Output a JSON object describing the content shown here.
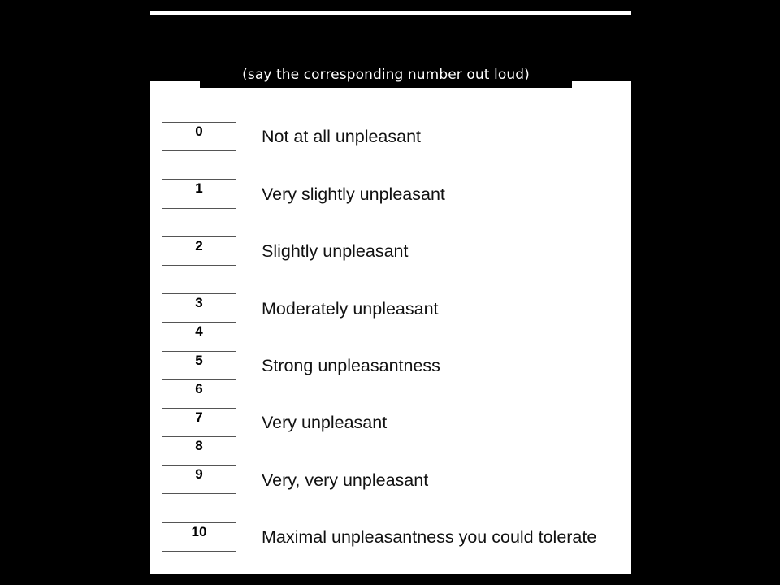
{
  "instruction": "(say the corresponding number out loud)",
  "scale_cells": [
    "0",
    "",
    "1",
    "",
    "2",
    "",
    "3",
    "4",
    "5",
    "6",
    "7",
    "8",
    "9",
    "",
    "10"
  ],
  "labels": [
    "Not at all unpleasant",
    "Very slightly unpleasant",
    "Slightly unpleasant",
    "Moderately unpleasant",
    "Strong unpleasantness",
    "Very unpleasant",
    "Very, very unpleasant",
    "Maximal unpleasantness you could tolerate"
  ],
  "colors": {
    "background": "#000000",
    "panel": "#ffffff",
    "caption_text": "#ffffff",
    "cell_border": "#555555"
  }
}
